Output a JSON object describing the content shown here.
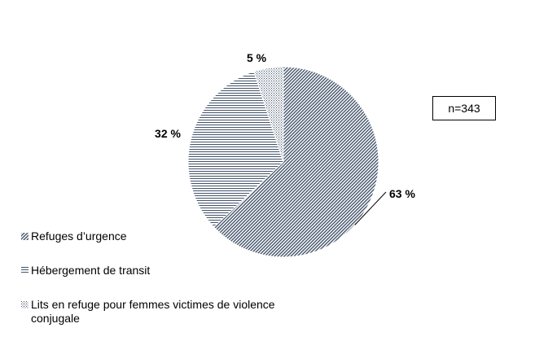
{
  "chart_data": {
    "type": "pie",
    "title": "",
    "annotation": "n=343",
    "slices": [
      {
        "label": "Refuges d’urgence",
        "value": 63,
        "display": "63 %",
        "pattern": "diagonal",
        "color": "#44546a"
      },
      {
        "label": "Hébergement de transit",
        "value": 32,
        "display": "32 %",
        "pattern": "horizontal",
        "color": "#44546a"
      },
      {
        "label": "Lits en refuge pour femmes victimes de violence conjugale",
        "value": 5,
        "display": "5 %",
        "pattern": "dots",
        "color": "#44546a"
      }
    ],
    "legend_position": "bottom-left"
  }
}
